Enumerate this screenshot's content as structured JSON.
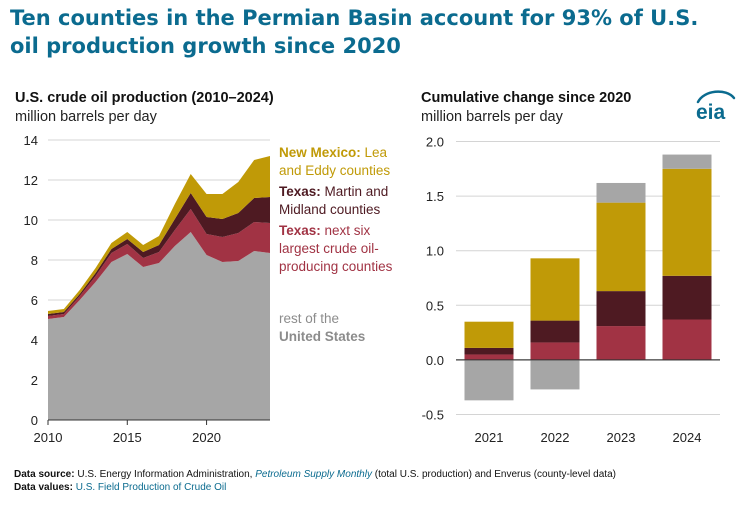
{
  "headline": "Ten counties in the Permian Basin account for 93% of U.S. oil production growth since 2020",
  "logo_text": "eia",
  "colors": {
    "new_mexico": "#c09a07",
    "texas_martin": "#4e1a22",
    "texas_six": "#a13344",
    "rest_us": "#a6a6a6",
    "headline": "#0b6b8f"
  },
  "chart_data": [
    {
      "type": "area",
      "title": "U.S. crude oil production (2010–2024)",
      "subtitle": "million barrels per day",
      "x": [
        2010,
        2011,
        2012,
        2013,
        2014,
        2015,
        2016,
        2017,
        2018,
        2019,
        2020,
        2021,
        2022,
        2023,
        2024
      ],
      "xticks": [
        "2010",
        "2015",
        "2020"
      ],
      "xtick_values": [
        2010,
        2015,
        2020
      ],
      "yticks": [
        "0",
        "2",
        "4",
        "6",
        "8",
        "10",
        "12",
        "14"
      ],
      "ylim": [
        0,
        14
      ],
      "xlim": [
        2010,
        2024
      ],
      "grid": "horizontal",
      "stack_order": [
        "rest of the United States",
        "Texas: next six largest crude oil-producing counties",
        "Texas: Martin and Midland counties",
        "New Mexico: Lea and Eddy counties"
      ],
      "series": [
        {
          "name": "rest of the United States",
          "color_key": "rest_us",
          "values": [
            5.05,
            5.15,
            6.0,
            6.9,
            7.9,
            8.3,
            7.65,
            7.85,
            8.7,
            9.4,
            8.25,
            7.9,
            7.95,
            8.45,
            8.35
          ]
        },
        {
          "name": "Texas: next six largest crude oil-producing counties",
          "color_key": "texas_six",
          "values": [
            0.15,
            0.15,
            0.2,
            0.3,
            0.45,
            0.5,
            0.45,
            0.55,
            0.8,
            1.15,
            1.05,
            1.25,
            1.4,
            1.45,
            1.5
          ]
        },
        {
          "name": "Texas: Martin and Midland counties",
          "color_key": "texas_martin",
          "values": [
            0.1,
            0.1,
            0.1,
            0.15,
            0.2,
            0.25,
            0.3,
            0.35,
            0.55,
            0.8,
            0.85,
            0.9,
            1.0,
            1.2,
            1.3
          ]
        },
        {
          "name": "New Mexico: Lea and Eddy counties",
          "color_key": "new_mexico",
          "values": [
            0.15,
            0.15,
            0.2,
            0.25,
            0.3,
            0.35,
            0.35,
            0.45,
            0.75,
            0.95,
            1.15,
            1.25,
            1.55,
            1.9,
            2.05
          ]
        }
      ],
      "labels": [
        {
          "bold": "New Mexico:",
          "rest": " Lea",
          "line2": "and Eddy counties",
          "color_key": "new_mexico"
        },
        {
          "bold": "Texas:",
          "rest": " Martin and",
          "line2": "Midland counties",
          "color_key": "texas_martin"
        },
        {
          "bold": "Texas:",
          "rest": " next six",
          "line2": "largest crude oil-",
          "line3": "producing counties",
          "color_key": "texas_six"
        },
        {
          "line1": "rest of the",
          "bold2": "United States",
          "color_key": "rest_us_label"
        }
      ]
    },
    {
      "type": "bar",
      "stacked": true,
      "title": "Cumulative change since 2020",
      "subtitle": "million barrels per day",
      "categories": [
        "2021",
        "2022",
        "2023",
        "2024"
      ],
      "yticks": [
        "2.0",
        "1.5",
        "1.0",
        "0.5",
        "0.0",
        "-0.5"
      ],
      "ylim": [
        -0.55,
        2.05
      ],
      "grid": "horizontal",
      "series": [
        {
          "name": "Texas: next six largest crude oil-producing counties",
          "color_key": "texas_six",
          "values": [
            0.05,
            0.16,
            0.31,
            0.37
          ]
        },
        {
          "name": "Texas: Martin and Midland counties",
          "color_key": "texas_martin",
          "values": [
            0.06,
            0.2,
            0.32,
            0.4
          ]
        },
        {
          "name": "New Mexico: Lea and Eddy counties",
          "color_key": "new_mexico",
          "values": [
            0.24,
            0.57,
            0.81,
            0.98
          ]
        },
        {
          "name": "rest of the United States",
          "color_key": "rest_us",
          "values": [
            -0.37,
            -0.27,
            0.18,
            0.13
          ]
        }
      ]
    }
  ],
  "source": {
    "label": "Data source:",
    "text1": "U.S. Energy Information Administration,",
    "italic": "Petroleum Supply Monthly",
    "text2": "(total U.S. production) and Enverus (county-level data)"
  },
  "values": {
    "label": "Data values:",
    "link": "U.S. Field Production of Crude Oil"
  }
}
